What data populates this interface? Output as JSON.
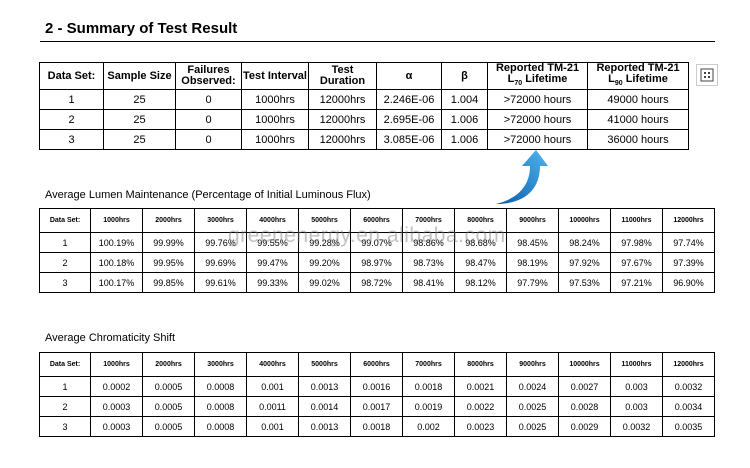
{
  "title": "2 - Summary of Test Result",
  "table1": {
    "headers": [
      "Data Set:",
      "Sample Size",
      "Failures Observed:",
      "Test Interval",
      "Test Duration",
      "α",
      "β",
      {
        "line1": "Reported TM-21",
        "prefix": "L",
        "sub": "70",
        "suffix": " Lifetime"
      },
      {
        "line1": "Reported TM-21",
        "prefix": "L",
        "sub": "90",
        "suffix": " Lifetime"
      }
    ],
    "rows": [
      [
        "1",
        "25",
        "0",
        "1000hrs",
        "12000hrs",
        "2.246E-06",
        "1.004",
        ">72000 hours",
        "49000 hours"
      ],
      [
        "2",
        "25",
        "0",
        "1000hrs",
        "12000hrs",
        "2.695E-06",
        "1.006",
        ">72000 hours",
        "41000 hours"
      ],
      [
        "3",
        "25",
        "0",
        "1000hrs",
        "12000hrs",
        "3.085E-06",
        "1.006",
        ">72000 hours",
        "36000 hours"
      ]
    ]
  },
  "table2": {
    "title": "Average Lumen Maintenance (Percentage of Initial Luminous Flux)",
    "headers": [
      "Data Set:",
      "1000hrs",
      "2000hrs",
      "3000hrs",
      "4000hrs",
      "5000hrs",
      "6000hrs",
      "7000hrs",
      "8000hrs",
      "9000hrs",
      "10000hrs",
      "11000hrs",
      "12000hrs"
    ],
    "rows": [
      [
        "1",
        "100.19%",
        "99.99%",
        "99.76%",
        "99.55%",
        "99.28%",
        "99.07%",
        "98.86%",
        "98.68%",
        "98.45%",
        "98.24%",
        "97.98%",
        "97.74%"
      ],
      [
        "2",
        "100.18%",
        "99.95%",
        "99.69%",
        "99.47%",
        "99.20%",
        "98.97%",
        "98.73%",
        "98.47%",
        "98.19%",
        "97.92%",
        "97.67%",
        "97.39%"
      ],
      [
        "3",
        "100.17%",
        "99.85%",
        "99.61%",
        "99.33%",
        "99.02%",
        "98.72%",
        "98.41%",
        "98.12%",
        "97.79%",
        "97.53%",
        "97.21%",
        "96.90%"
      ]
    ]
  },
  "table3": {
    "title": "Average Chromaticity Shift",
    "headers": [
      "Data Set:",
      "1000hrs",
      "2000hrs",
      "3000hrs",
      "4000hrs",
      "5000hrs",
      "6000hrs",
      "7000hrs",
      "8000hrs",
      "9000hrs",
      "10000hrs",
      "11000hrs",
      "12000hrs"
    ],
    "rows": [
      [
        "1",
        "0.0002",
        "0.0005",
        "0.0008",
        "0.001",
        "0.0013",
        "0.0016",
        "0.0018",
        "0.0021",
        "0.0024",
        "0.0027",
        "0.003",
        "0.0032"
      ],
      [
        "2",
        "0.0003",
        "0.0005",
        "0.0008",
        "0.0011",
        "0.0014",
        "0.0017",
        "0.0019",
        "0.0022",
        "0.0025",
        "0.0028",
        "0.003",
        "0.0034"
      ],
      [
        "3",
        "0.0003",
        "0.0005",
        "0.0008",
        "0.001",
        "0.0013",
        "0.0018",
        "0.002",
        "0.0023",
        "0.0025",
        "0.0029",
        "0.0032",
        "0.0035"
      ]
    ]
  },
  "watermark": "greenenergy.en.alibaba.com"
}
